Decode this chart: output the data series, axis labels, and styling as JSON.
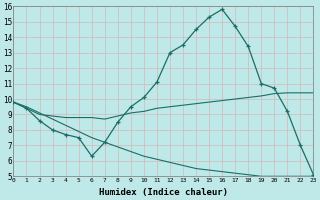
{
  "xlabel": "Humidex (Indice chaleur)",
  "bg_color": "#bfe8e8",
  "grid_color": "#d4b8b8",
  "line_color": "#1a6e68",
  "xlim": [
    0,
    23
  ],
  "ylim": [
    5,
    16
  ],
  "xtick_labels": [
    "0",
    "1",
    "2",
    "3",
    "4",
    "5",
    "6",
    "7",
    "8",
    "9",
    "10",
    "11",
    "12",
    "13",
    "14",
    "15",
    "16",
    "17",
    "18",
    "19",
    "20",
    "21",
    "22",
    "23"
  ],
  "xtick_vals": [
    0,
    1,
    2,
    3,
    4,
    5,
    6,
    7,
    8,
    9,
    10,
    11,
    12,
    13,
    14,
    15,
    16,
    17,
    18,
    19,
    20,
    21,
    22,
    23
  ],
  "ytick_vals": [
    5,
    6,
    7,
    8,
    9,
    10,
    11,
    12,
    13,
    14,
    15,
    16
  ],
  "line1_x": [
    0,
    1,
    2,
    3,
    4,
    5,
    6,
    7,
    8,
    9,
    10,
    11,
    12,
    13,
    14,
    15,
    16,
    17,
    18,
    19,
    20,
    21,
    22,
    23
  ],
  "line1_y": [
    9.8,
    9.4,
    8.6,
    8.0,
    7.7,
    7.5,
    6.3,
    7.2,
    8.5,
    9.5,
    10.1,
    11.1,
    13.0,
    13.5,
    14.5,
    15.3,
    15.8,
    14.7,
    13.4,
    11.0,
    10.7,
    9.2,
    7.0,
    5.1
  ],
  "line2_x": [
    0,
    1,
    2,
    3,
    4,
    5,
    6,
    7,
    8,
    9,
    10,
    11,
    12,
    13,
    14,
    15,
    16,
    17,
    18,
    19,
    20,
    21,
    22,
    23
  ],
  "line2_y": [
    9.8,
    9.4,
    9.0,
    8.9,
    8.8,
    8.8,
    8.8,
    8.7,
    8.9,
    9.1,
    9.2,
    9.4,
    9.5,
    9.6,
    9.7,
    9.8,
    9.9,
    10.0,
    10.1,
    10.2,
    10.35,
    10.4,
    10.4,
    10.4
  ],
  "line3_x": [
    0,
    1,
    2,
    3,
    4,
    5,
    6,
    7,
    8,
    9,
    10,
    11,
    12,
    13,
    14,
    15,
    16,
    17,
    18,
    19,
    20,
    21,
    22,
    23
  ],
  "line3_y": [
    9.8,
    9.5,
    9.1,
    8.7,
    8.3,
    7.9,
    7.5,
    7.2,
    6.9,
    6.6,
    6.3,
    6.1,
    5.9,
    5.7,
    5.5,
    5.4,
    5.3,
    5.2,
    5.1,
    5.0,
    5.0,
    5.0,
    5.0,
    5.0
  ]
}
